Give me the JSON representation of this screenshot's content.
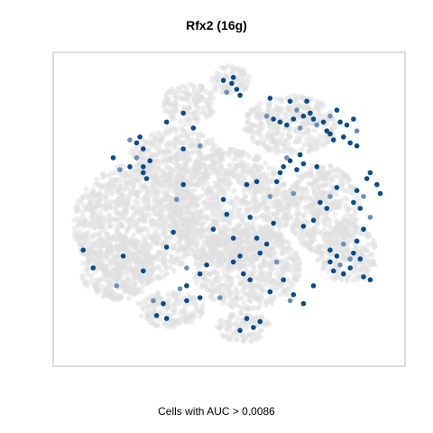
{
  "chart_data": {
    "type": "scatter",
    "title": "Rfx2 (16g)",
    "xlabel": "Cells with AUC > 0.0086",
    "ylabel": "",
    "grid": false,
    "legend": "none",
    "colors": {
      "background_cells": "#e0e0e0",
      "high_auc": "#0e4b86",
      "mid_auc": "#6d8fb3",
      "frame": "#bdbdbd"
    },
    "background_regions": [
      {
        "cx": 0.22,
        "cy": 0.55,
        "rx": 0.19,
        "ry": 0.2
      },
      {
        "cx": 0.16,
        "cy": 0.7,
        "rx": 0.11,
        "ry": 0.11
      },
      {
        "cx": 0.34,
        "cy": 0.33,
        "rx": 0.14,
        "ry": 0.1
      },
      {
        "cx": 0.5,
        "cy": 0.5,
        "rx": 0.18,
        "ry": 0.2
      },
      {
        "cx": 0.55,
        "cy": 0.7,
        "rx": 0.16,
        "ry": 0.14
      },
      {
        "cx": 0.38,
        "cy": 0.15,
        "rx": 0.08,
        "ry": 0.07
      },
      {
        "cx": 0.5,
        "cy": 0.07,
        "rx": 0.06,
        "ry": 0.05
      },
      {
        "cx": 0.68,
        "cy": 0.22,
        "rx": 0.14,
        "ry": 0.1
      },
      {
        "cx": 0.78,
        "cy": 0.5,
        "rx": 0.11,
        "ry": 0.15
      },
      {
        "cx": 0.85,
        "cy": 0.65,
        "rx": 0.09,
        "ry": 0.1
      },
      {
        "cx": 0.54,
        "cy": 0.9,
        "rx": 0.08,
        "ry": 0.05
      },
      {
        "cx": 0.32,
        "cy": 0.84,
        "rx": 0.1,
        "ry": 0.06
      }
    ],
    "highlighted_cells": [
      [
        0.505,
        0.08
      ],
      [
        0.52,
        0.1
      ],
      [
        0.49,
        0.11
      ],
      [
        0.51,
        0.06
      ],
      [
        0.53,
        0.12
      ],
      [
        0.48,
        0.07
      ],
      [
        0.62,
        0.13
      ],
      [
        0.61,
        0.19
      ],
      [
        0.63,
        0.2
      ],
      [
        0.65,
        0.21
      ],
      [
        0.67,
        0.22
      ],
      [
        0.69,
        0.2
      ],
      [
        0.7,
        0.17
      ],
      [
        0.72,
        0.19
      ],
      [
        0.74,
        0.18
      ],
      [
        0.75,
        0.2
      ],
      [
        0.78,
        0.21
      ],
      [
        0.8,
        0.19
      ],
      [
        0.82,
        0.17
      ],
      [
        0.83,
        0.21
      ],
      [
        0.85,
        0.22
      ],
      [
        0.87,
        0.2
      ],
      [
        0.88,
        0.24
      ],
      [
        0.8,
        0.25
      ],
      [
        0.84,
        0.26
      ],
      [
        0.86,
        0.28
      ],
      [
        0.88,
        0.29
      ],
      [
        0.76,
        0.22
      ],
      [
        0.73,
        0.14
      ],
      [
        0.68,
        0.14
      ],
      [
        0.79,
        0.24
      ],
      [
        0.81,
        0.27
      ],
      [
        0.71,
        0.23
      ],
      [
        0.66,
        0.36
      ],
      [
        0.68,
        0.34
      ],
      [
        0.7,
        0.37
      ],
      [
        0.72,
        0.35
      ],
      [
        0.67,
        0.33
      ],
      [
        0.65,
        0.38
      ],
      [
        0.71,
        0.32
      ],
      [
        0.76,
        0.36
      ],
      [
        0.64,
        0.41
      ],
      [
        0.2,
        0.27
      ],
      [
        0.22,
        0.28
      ],
      [
        0.23,
        0.26
      ],
      [
        0.24,
        0.3
      ],
      [
        0.26,
        0.34
      ],
      [
        0.22,
        0.33
      ],
      [
        0.24,
        0.38
      ],
      [
        0.2,
        0.36
      ],
      [
        0.25,
        0.4
      ],
      [
        0.15,
        0.33
      ],
      [
        0.17,
        0.37
      ],
      [
        0.24,
        0.36
      ],
      [
        0.36,
        0.18
      ],
      [
        0.31,
        0.21
      ],
      [
        0.39,
        0.23
      ],
      [
        0.41,
        0.29
      ],
      [
        0.36,
        0.42
      ],
      [
        0.36,
        0.3
      ],
      [
        0.55,
        0.42
      ],
      [
        0.58,
        0.41
      ],
      [
        0.62,
        0.46
      ],
      [
        0.56,
        0.53
      ],
      [
        0.58,
        0.6
      ],
      [
        0.63,
        0.55
      ],
      [
        0.61,
        0.62
      ],
      [
        0.69,
        0.45
      ],
      [
        0.72,
        0.56
      ],
      [
        0.75,
        0.54
      ],
      [
        0.77,
        0.48
      ],
      [
        0.79,
        0.5
      ],
      [
        0.8,
        0.46
      ],
      [
        0.82,
        0.43
      ],
      [
        0.87,
        0.48
      ],
      [
        0.88,
        0.44
      ],
      [
        0.89,
        0.5
      ],
      [
        0.9,
        0.46
      ],
      [
        0.91,
        0.4
      ],
      [
        0.92,
        0.38
      ],
      [
        0.94,
        0.42
      ],
      [
        0.95,
        0.45
      ],
      [
        0.92,
        0.53
      ],
      [
        0.9,
        0.57
      ],
      [
        0.88,
        0.61
      ],
      [
        0.8,
        0.64
      ],
      [
        0.82,
        0.66
      ],
      [
        0.83,
        0.69
      ],
      [
        0.84,
        0.72
      ],
      [
        0.86,
        0.7
      ],
      [
        0.87,
        0.65
      ],
      [
        0.89,
        0.67
      ],
      [
        0.84,
        0.62
      ],
      [
        0.81,
        0.71
      ],
      [
        0.9,
        0.73
      ],
      [
        0.92,
        0.74
      ],
      [
        0.8,
        0.68
      ],
      [
        0.86,
        0.67
      ],
      [
        0.51,
        0.68
      ],
      [
        0.53,
        0.66
      ],
      [
        0.54,
        0.72
      ],
      [
        0.59,
        0.65
      ],
      [
        0.64,
        0.68
      ],
      [
        0.66,
        0.74
      ],
      [
        0.69,
        0.79
      ],
      [
        0.72,
        0.82
      ],
      [
        0.75,
        0.76
      ],
      [
        0.68,
        0.81
      ],
      [
        0.62,
        0.78
      ],
      [
        0.56,
        0.74
      ],
      [
        0.43,
        0.69
      ],
      [
        0.41,
        0.72
      ],
      [
        0.47,
        0.8
      ],
      [
        0.55,
        0.87
      ],
      [
        0.53,
        0.91
      ],
      [
        0.57,
        0.9
      ],
      [
        0.59,
        0.88
      ],
      [
        0.35,
        0.77
      ],
      [
        0.37,
        0.81
      ],
      [
        0.3,
        0.82
      ],
      [
        0.28,
        0.86
      ],
      [
        0.31,
        0.87
      ],
      [
        0.27,
        0.81
      ],
      [
        0.37,
        0.76
      ],
      [
        0.41,
        0.8
      ],
      [
        0.24,
        0.71
      ],
      [
        0.18,
        0.66
      ],
      [
        0.16,
        0.76
      ],
      [
        0.06,
        0.64
      ],
      [
        0.09,
        0.7
      ],
      [
        0.31,
        0.63
      ],
      [
        0.33,
        0.58
      ],
      [
        0.37,
        0.7
      ],
      [
        0.49,
        0.52
      ],
      [
        0.45,
        0.57
      ],
      [
        0.51,
        0.6
      ],
      [
        0.48,
        0.47
      ],
      [
        0.34,
        0.47
      ]
    ]
  }
}
